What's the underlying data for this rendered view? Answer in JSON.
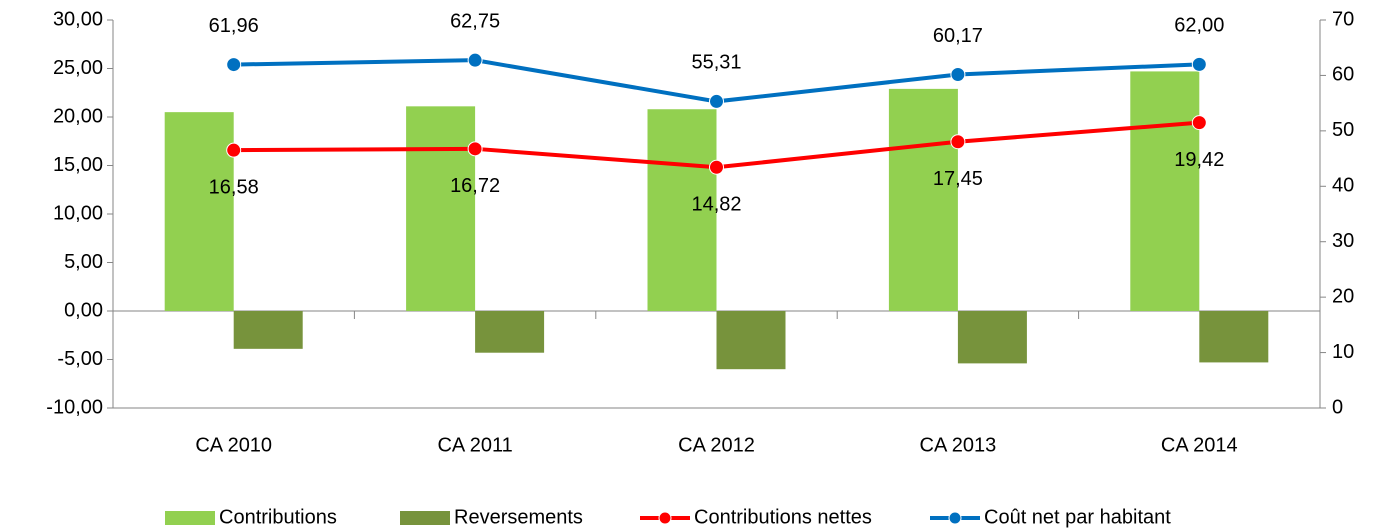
{
  "chart_data": {
    "type": "bar",
    "categories": [
      "CA 2010",
      "CA 2011",
      "CA 2012",
      "CA 2013",
      "CA 2014"
    ],
    "series": [
      {
        "name": "Contributions",
        "type": "bar",
        "color": "#92d050",
        "values": [
          20.5,
          21.1,
          20.8,
          22.9,
          24.7
        ]
      },
      {
        "name": "Reversements",
        "type": "bar",
        "color": "#77933c",
        "values": [
          -3.9,
          -4.3,
          -6.0,
          -5.4,
          -5.3
        ]
      },
      {
        "name": "Contributions nettes",
        "type": "line",
        "color": "#ff0000",
        "values": [
          16.58,
          16.72,
          14.82,
          17.45,
          19.42
        ],
        "value_labels": [
          "16,58",
          "16,72",
          "14,82",
          "17,45",
          "19,42"
        ]
      },
      {
        "name": "Coût net par habitant",
        "type": "line",
        "axis": "y2",
        "color": "#0070c0",
        "values": [
          61.96,
          62.75,
          55.31,
          60.17,
          62.0
        ],
        "value_labels": [
          "61,96",
          "62,75",
          "55,31",
          "60,17",
          "62,00"
        ]
      }
    ],
    "ylim": [
      -10,
      30
    ],
    "yticks": [
      {
        "value": -10,
        "label": "-10,00"
      },
      {
        "value": -5,
        "label": "-5,00"
      },
      {
        "value": 0,
        "label": "0,00"
      },
      {
        "value": 5,
        "label": "5,00"
      },
      {
        "value": 10,
        "label": "10,00"
      },
      {
        "value": 15,
        "label": "15,00"
      },
      {
        "value": 20,
        "label": "20,00"
      },
      {
        "value": 25,
        "label": "25,00"
      },
      {
        "value": 30,
        "label": "30,00"
      }
    ],
    "y2lim": [
      0,
      70
    ],
    "y2ticks": [
      0,
      10,
      20,
      30,
      40,
      50,
      60,
      70
    ],
    "legend": "bottom"
  }
}
